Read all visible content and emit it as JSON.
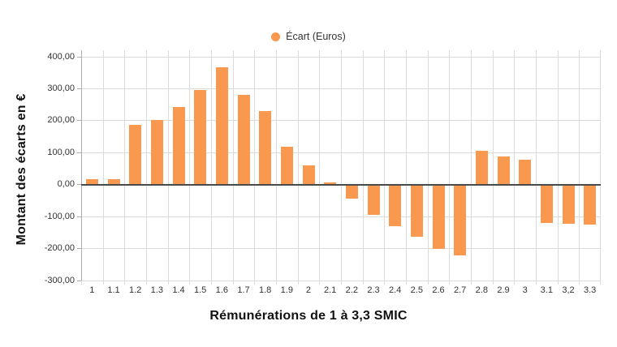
{
  "chart_data": {
    "type": "bar",
    "title": "",
    "legend": "Écart (Euros)",
    "legend_position": "top",
    "xlabel": "Rémunérations de 1 à 3,3 SMIC",
    "ylabel": "Montant des écarts en €",
    "categories": [
      "1",
      "1.1",
      "1.2",
      "1.3",
      "1.4",
      "1.5",
      "1.6",
      "1.7",
      "1.8",
      "1.9",
      "2",
      "2.1",
      "2.2",
      "2.3",
      "2.4",
      "2.5",
      "2.6",
      "2.7",
      "2.8",
      "2.9",
      "3",
      "3.1",
      "3,2",
      "3.3"
    ],
    "values": [
      16,
      18,
      188,
      203,
      244,
      297,
      366,
      280,
      230,
      118,
      59,
      6,
      -43,
      -94,
      -131,
      -162,
      -201,
      -222,
      107,
      88,
      79,
      -119,
      -122,
      -125
    ],
    "y_tick_values": [
      400,
      300,
      200,
      100,
      0,
      -100,
      -200,
      -300
    ],
    "y_tick_labels": [
      "400,00",
      "300,00",
      "200,00",
      "100,00",
      "0,00",
      "-100,00",
      "-200,00",
      "-300,00"
    ],
    "ylim": [
      -300,
      400
    ],
    "grid": true,
    "colors": {
      "bar": "#F9984F",
      "grid": "#DBDBDB",
      "zero_line": "#4A4A4A",
      "axis_border": "#ADADAD",
      "tick_text": "#333333",
      "title_text": "#111111"
    }
  }
}
